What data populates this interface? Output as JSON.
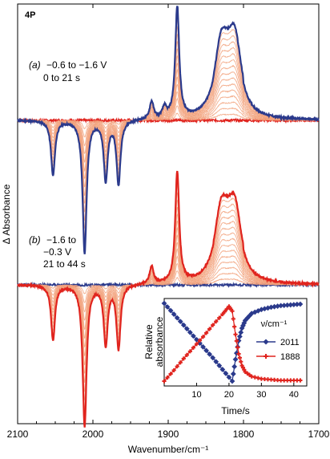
{
  "figure": {
    "label": "4P",
    "ylabel": "Δ Absorbance",
    "xlabel": "Wavenumber/cm⁻¹"
  },
  "panel_a": {
    "label": "(a)",
    "line1": "−0.6 to −1.6 V",
    "line2": "0 to 21 s"
  },
  "panel_b": {
    "label": "(b)",
    "line1": "−1.6 to",
    "line2": "−0.3 V",
    "line3": "21 to 44 s"
  },
  "inset": {
    "ylabel1": "Relative",
    "ylabel2": "absorbance",
    "xlabel": "Time/s",
    "legend_title": "ν/cm⁻¹"
  },
  "chart_data": [
    {
      "type": "line",
      "name": "main-spectra",
      "x_axis": {
        "ticks": [
          "2100",
          "2000",
          "1900",
          "1800",
          "1700"
        ],
        "range": [
          2100,
          1700
        ],
        "reversed": true
      },
      "colors": {
        "panel_a_final": "#2b3a8c",
        "panel_b_final": "#e0241e",
        "intermediate": "#f2a27c"
      },
      "panel_a_final_peaks": [
        {
          "x": 2053,
          "value": -0.62
        },
        {
          "x": 2011,
          "value": -1.5
        },
        {
          "x": 1983,
          "value": -0.67
        },
        {
          "x": 1966,
          "value": -0.72
        },
        {
          "x": 1922,
          "value": 0.2
        },
        {
          "x": 1905,
          "value": 0.12
        },
        {
          "x": 1888,
          "value": 1.26
        },
        {
          "x": 1830,
          "value": 0.72
        },
        {
          "x": 1811,
          "value": 0.68
        }
      ],
      "panel_b_final_peaks": [
        {
          "x": 2053,
          "value": -0.62
        },
        {
          "x": 2011,
          "value": -1.6
        },
        {
          "x": 1983,
          "value": -0.68
        },
        {
          "x": 1966,
          "value": -0.72
        },
        {
          "x": 1922,
          "value": 0.2
        },
        {
          "x": 1888,
          "value": 1.25
        },
        {
          "x": 1830,
          "value": 0.7
        },
        {
          "x": 1811,
          "value": 0.63
        }
      ]
    },
    {
      "type": "line",
      "name": "inset",
      "xlabel": "Time/s",
      "ylabel": "Relative absorbance",
      "xlim": [
        0,
        44
      ],
      "ylim": [
        0,
        1
      ],
      "x_ticks": [
        "10",
        "20",
        "30",
        "40"
      ],
      "series": [
        {
          "name": "2011",
          "color": "#2b3a8c",
          "x": [
            0,
            3,
            6,
            9,
            12,
            15,
            18,
            21,
            22,
            23,
            24,
            25,
            27,
            30,
            33,
            36,
            39,
            42
          ],
          "values": [
            1.0,
            0.86,
            0.72,
            0.58,
            0.44,
            0.3,
            0.15,
            0.0,
            0.28,
            0.52,
            0.68,
            0.78,
            0.87,
            0.92,
            0.95,
            0.97,
            0.98,
            0.99
          ]
        },
        {
          "name": "1888",
          "color": "#e0241e",
          "x": [
            0,
            3,
            6,
            9,
            12,
            15,
            18,
            20,
            21,
            22,
            23,
            24,
            25,
            27,
            30,
            33,
            36,
            39,
            42
          ],
          "values": [
            0.0,
            0.14,
            0.29,
            0.43,
            0.57,
            0.72,
            0.86,
            0.96,
            0.9,
            0.6,
            0.35,
            0.2,
            0.12,
            0.06,
            0.03,
            0.02,
            0.01,
            0.01,
            0.01
          ]
        }
      ]
    }
  ]
}
